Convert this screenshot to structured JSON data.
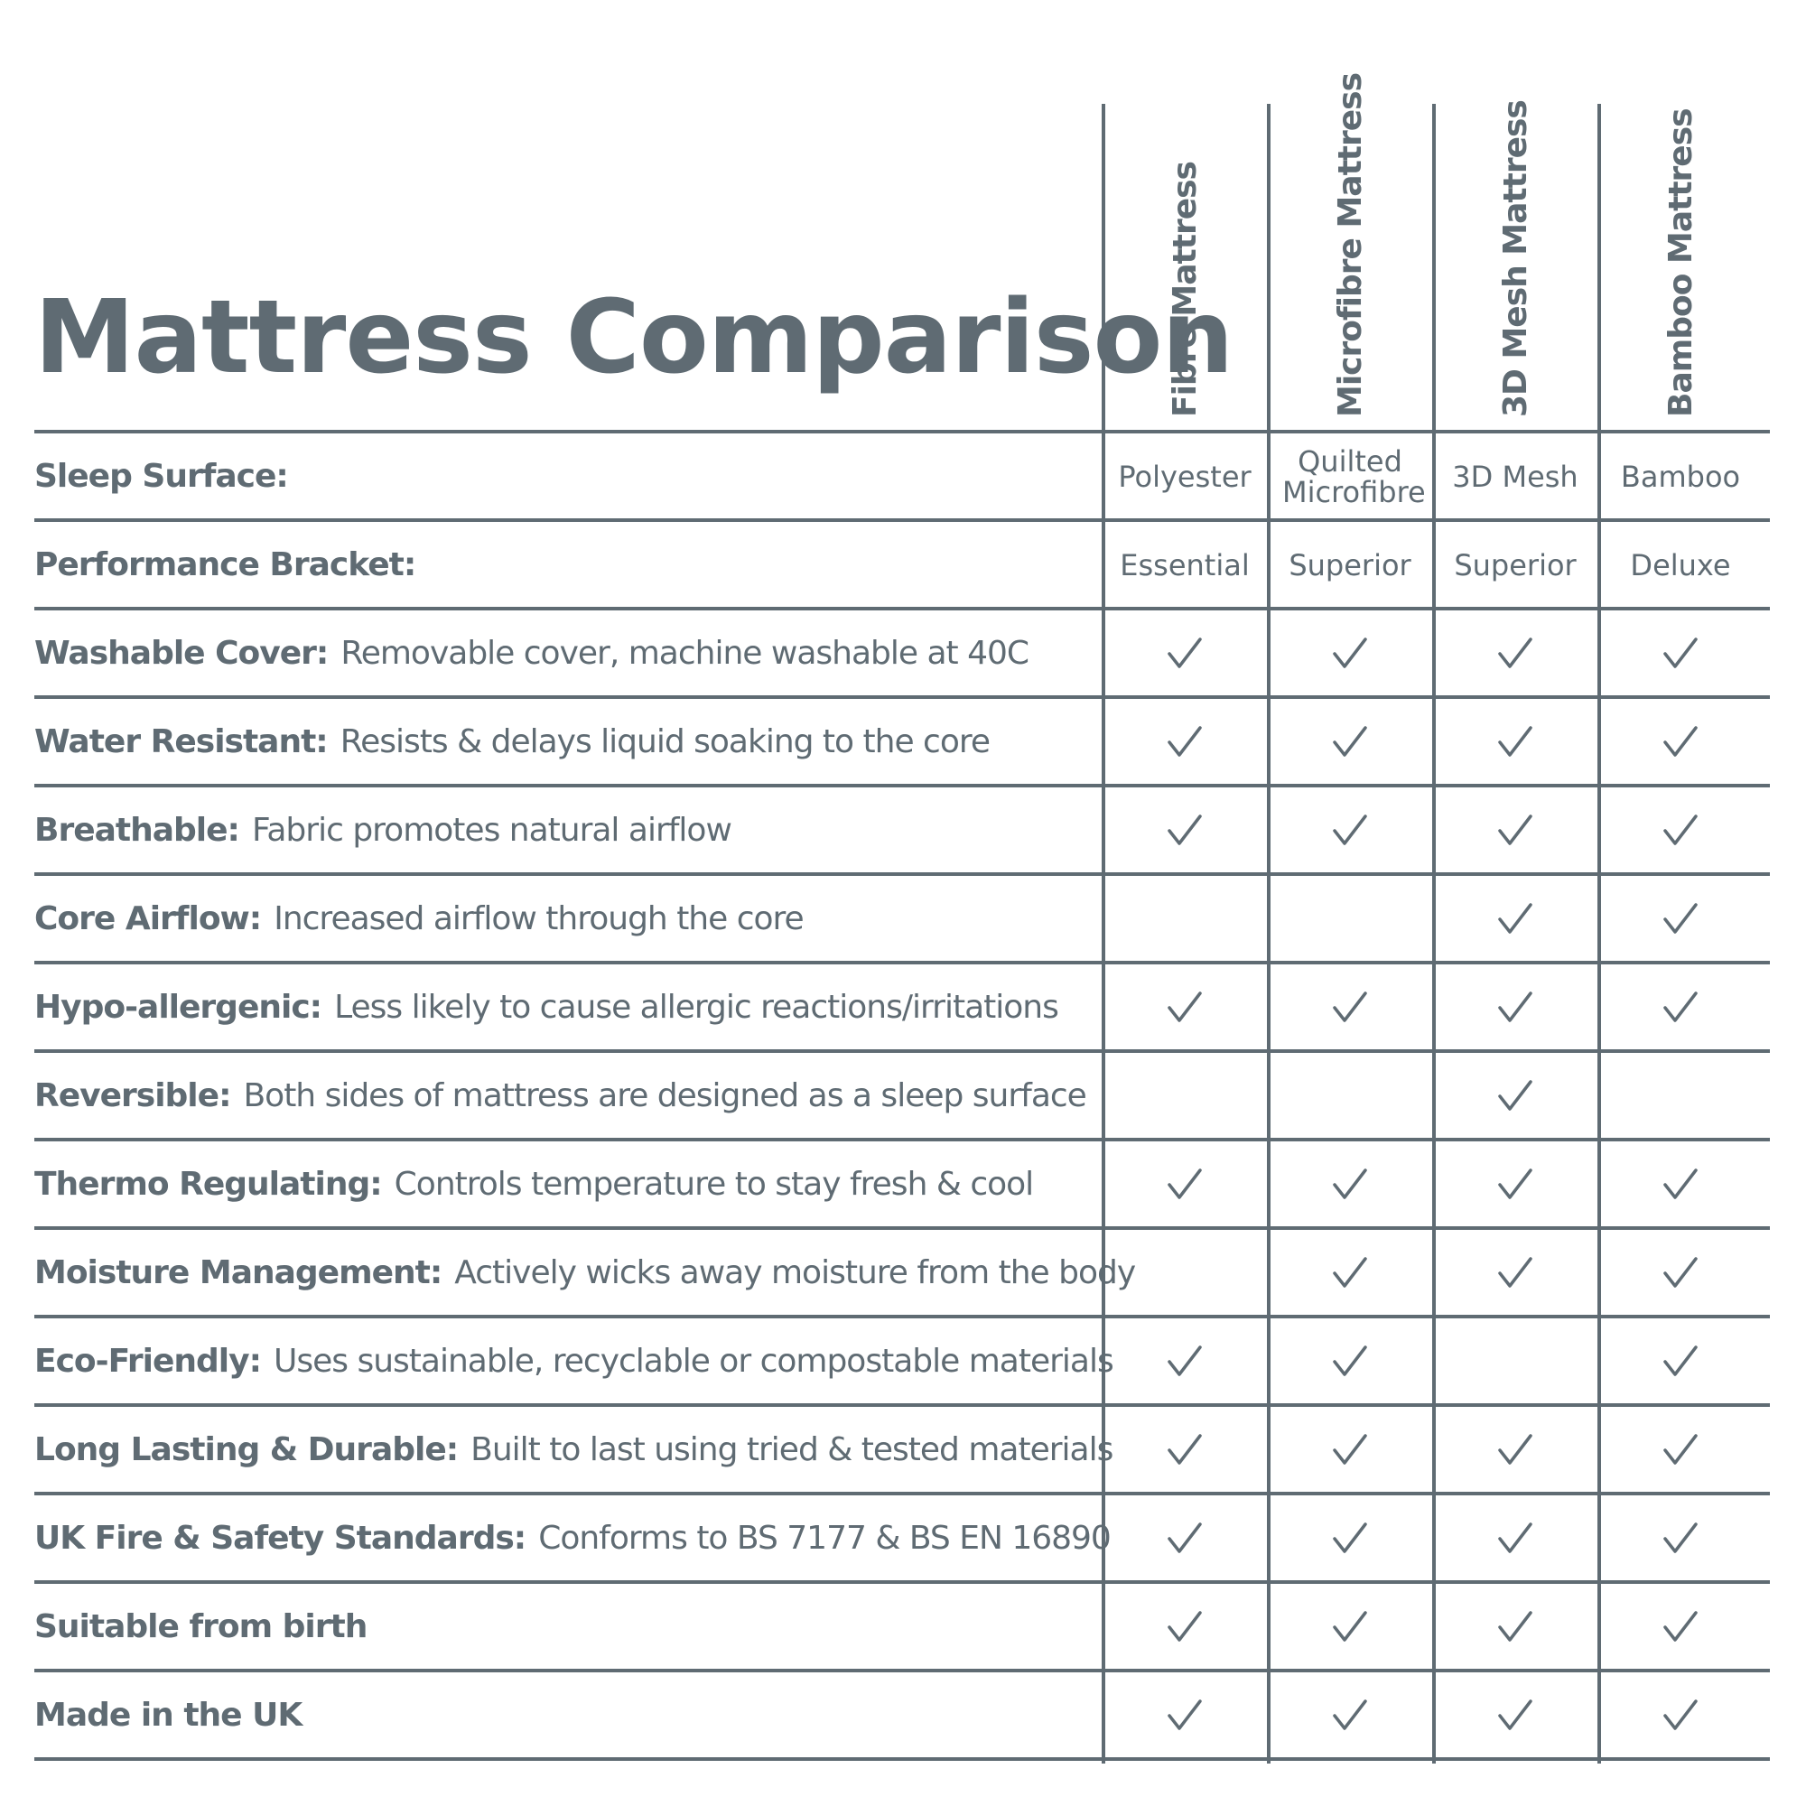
{
  "title": "Mattress Comparison",
  "columns": [
    "Fibre Mattress",
    "Microfibre Mattress",
    "3D Mesh Mattress",
    "Bamboo Mattress"
  ],
  "rows": [
    {
      "label": "Sleep Surface:",
      "desc": "",
      "values": [
        "Polyester",
        "Quilted Microfibre",
        "3D Mesh",
        "Bamboo"
      ]
    },
    {
      "label": "Performance Bracket:",
      "desc": "",
      "values": [
        "Essential",
        "Superior",
        "Superior",
        "Deluxe"
      ]
    },
    {
      "label": "Washable Cover:",
      "desc": "Removable cover, machine washable at 40C",
      "checks": [
        true,
        true,
        true,
        true
      ]
    },
    {
      "label": "Water Resistant:",
      "desc": "Resists & delays liquid soaking to the core",
      "checks": [
        true,
        true,
        true,
        true
      ]
    },
    {
      "label": "Breathable:",
      "desc": "Fabric promotes natural airflow",
      "checks": [
        true,
        true,
        true,
        true
      ]
    },
    {
      "label": "Core Airflow:",
      "desc": "Increased airflow through the core",
      "checks": [
        false,
        false,
        true,
        true
      ]
    },
    {
      "label": "Hypo-allergenic:",
      "desc": "Less likely to cause allergic reactions/irritations",
      "checks": [
        true,
        true,
        true,
        true
      ]
    },
    {
      "label": "Reversible:",
      "desc": "Both sides of mattress are designed as a sleep surface",
      "checks": [
        false,
        false,
        true,
        false
      ]
    },
    {
      "label": "Thermo Regulating:",
      "desc": "Controls temperature to stay fresh & cool",
      "checks": [
        true,
        true,
        true,
        true
      ]
    },
    {
      "label": "Moisture Management:",
      "desc": "Actively wicks away moisture from the body",
      "checks": [
        false,
        true,
        true,
        true
      ]
    },
    {
      "label": "Eco-Friendly:",
      "desc": "Uses sustainable, recyclable or compostable materials",
      "checks": [
        true,
        true,
        false,
        true
      ]
    },
    {
      "label": "Long Lasting & Durable:",
      "desc": "Built to last using tried & tested materials",
      "checks": [
        true,
        true,
        true,
        true
      ]
    },
    {
      "label": "UK Fire & Safety Standards:",
      "desc": "Conforms to BS 7177 & BS EN 16890",
      "checks": [
        true,
        true,
        true,
        true
      ]
    },
    {
      "label": "Suitable from birth",
      "desc": "",
      "checks": [
        true,
        true,
        true,
        true
      ]
    },
    {
      "label": "Made in the UK",
      "desc": "",
      "checks": [
        true,
        true,
        true,
        true
      ]
    }
  ],
  "icons": {
    "check": "checkmark-icon"
  },
  "colors": {
    "ink": "#5f6b73",
    "background": "#ffffff"
  }
}
